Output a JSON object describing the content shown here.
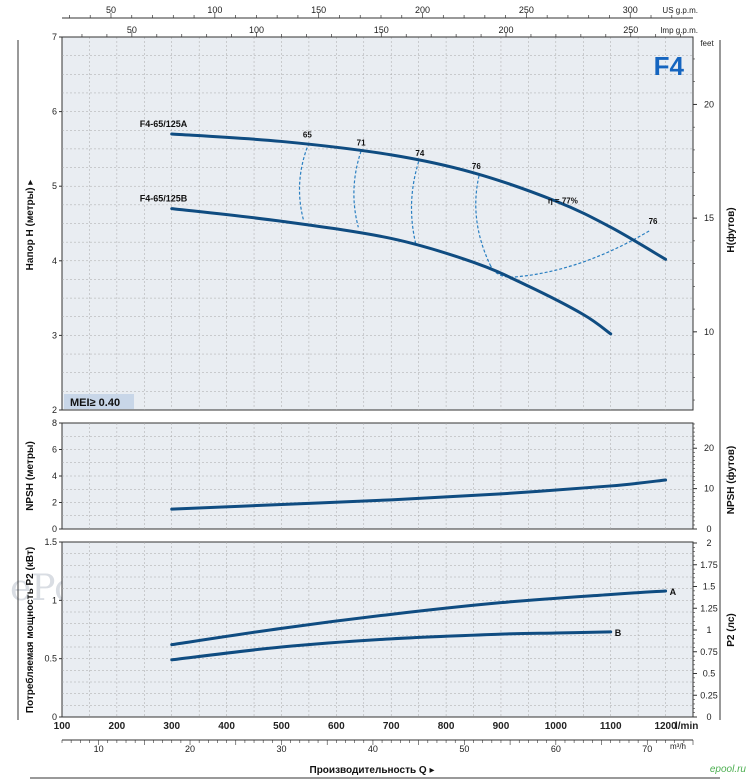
{
  "chart_data": {
    "type": "line",
    "title": "F4",
    "badge": "MEI≥ 0.40",
    "watermark": "ePool.ru",
    "corner_logo": "epool.ru",
    "x_axis": {
      "label": "Производительность Q",
      "range": [
        100,
        1250
      ],
      "lmin_unit": "l/min",
      "lmin_ticks": [
        100,
        200,
        300,
        400,
        500,
        600,
        700,
        800,
        900,
        1000,
        1100,
        1200
      ],
      "m3h_unit": "m³/h",
      "m3h_ticks": [
        10,
        20,
        30,
        40,
        50,
        60,
        70
      ],
      "usgpm_unit": "US g.p.m.",
      "usgpm_ticks": [
        50,
        100,
        150,
        200,
        250,
        300
      ],
      "impgpm_unit": "Imp g.p.m.",
      "impgpm_ticks": [
        50,
        100,
        150,
        200,
        250
      ]
    },
    "head": {
      "ylabel": "Напор H (метры)",
      "ylabel_right": "H(футов)",
      "right_unit": "feet",
      "ylim": [
        2,
        7
      ],
      "ticks": [
        2,
        3,
        4,
        5,
        6,
        7
      ],
      "right_ticks": [
        10,
        15,
        20
      ],
      "series": [
        {
          "name": "F4-65/125A",
          "x": [
            300,
            500,
            700,
            850,
            1000,
            1100,
            1200
          ],
          "y": [
            5.7,
            5.6,
            5.42,
            5.18,
            4.8,
            4.45,
            4.02
          ]
        },
        {
          "name": "F4-65/125B",
          "x": [
            300,
            500,
            700,
            850,
            950,
            1050,
            1100
          ],
          "y": [
            4.7,
            4.53,
            4.3,
            3.98,
            3.66,
            3.28,
            3.02
          ]
        }
      ],
      "efficiency_labels": [
        "65",
        "71",
        "74",
        "76",
        "η = 77%",
        "76"
      ],
      "efficiency_points": [
        {
          "label": "65",
          "top": [
            550,
            5.58
          ],
          "bottom": [
            540,
            4.55
          ]
        },
        {
          "label": "71",
          "top": [
            645,
            5.47
          ],
          "bottom": [
            640,
            4.45
          ]
        },
        {
          "label": "74",
          "top": [
            750,
            5.33
          ],
          "bottom": [
            745,
            4.22
          ]
        },
        {
          "label": "76",
          "top": [
            860,
            5.14
          ],
          "bottom": [
            880,
            3.95
          ]
        },
        {
          "label": "76",
          "top": [
            1170,
            4.4
          ],
          "bottom": [
            920,
            3.78
          ]
        }
      ]
    },
    "npsh": {
      "ylabel": "NPSH (метры)",
      "ylabel_right": "NPSH (футов)",
      "ylim": [
        0,
        8
      ],
      "ticks": [
        0,
        2,
        4,
        6,
        8
      ],
      "right_ticks": [
        0,
        10,
        20
      ],
      "series": [
        {
          "name": "NPSH",
          "x": [
            300,
            500,
            700,
            900,
            1100,
            1200
          ],
          "y": [
            1.5,
            1.85,
            2.2,
            2.65,
            3.25,
            3.7
          ]
        }
      ]
    },
    "power": {
      "ylabel": "Потребляемая мощность P2 (кВт)",
      "ylabel_right": "P2 (лс)",
      "ylim": [
        0,
        1.5
      ],
      "ticks": [
        0,
        0.5,
        1,
        1.5
      ],
      "right_ticks": [
        0,
        0.25,
        0.5,
        0.75,
        1,
        1.25,
        1.5,
        1.75,
        2
      ],
      "series": [
        {
          "name": "A",
          "x": [
            300,
            500,
            700,
            900,
            1100,
            1200
          ],
          "y": [
            0.62,
            0.76,
            0.88,
            0.98,
            1.05,
            1.08
          ]
        },
        {
          "name": "B",
          "x": [
            300,
            500,
            700,
            900,
            1000,
            1100
          ],
          "y": [
            0.49,
            0.6,
            0.67,
            0.71,
            0.72,
            0.73
          ]
        }
      ]
    },
    "colors": {
      "curve": "#0f4c81",
      "dash": "#2a7fc1",
      "grid": "#a8a8a8",
      "plot_bg": "#e9edf2",
      "badge_bg": "#c8d6e8"
    }
  }
}
